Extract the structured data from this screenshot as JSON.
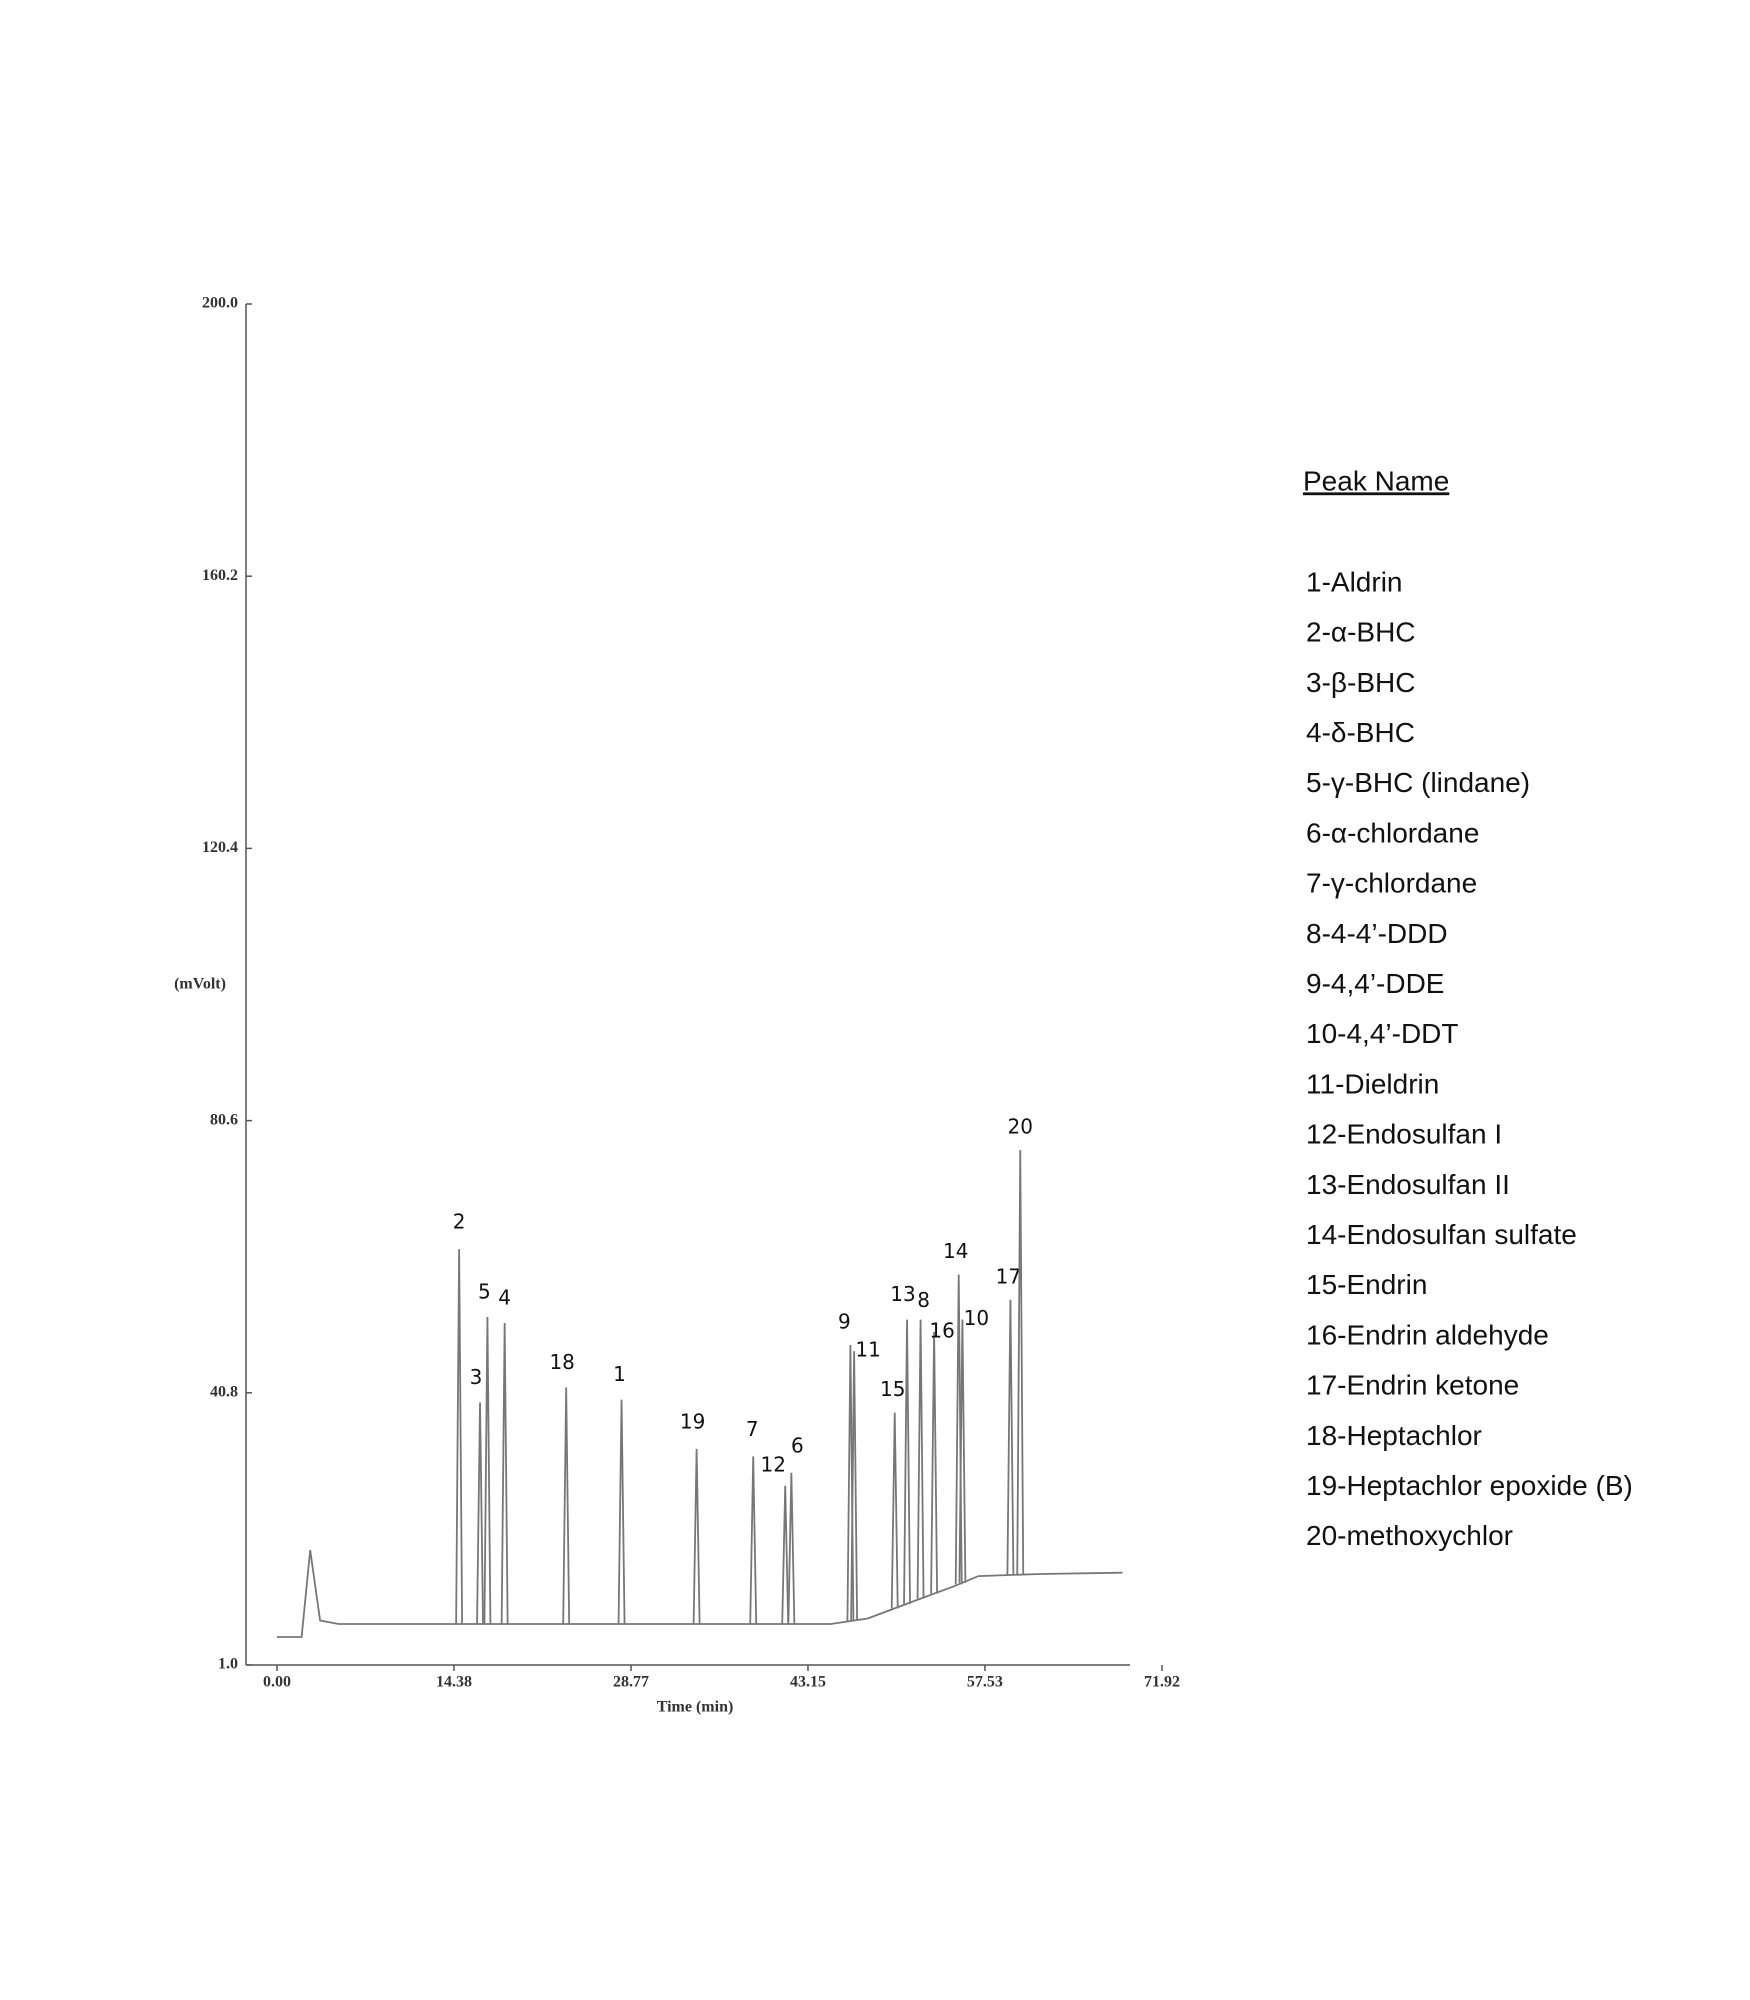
{
  "chart_data": {
    "type": "chromatogram",
    "y_label": "(mVolt)",
    "x_label": "Time (min)",
    "xlim": [
      0,
      71.92
    ],
    "ylim": [
      1.0,
      200.0
    ],
    "xticks": [
      {
        "value": 0,
        "label": "0.00"
      },
      14.38,
      28.77,
      43.15,
      57.53,
      71.92
    ],
    "yticks": [
      {
        "value": 1,
        "label": "1.0"
      },
      40.8,
      80.6,
      120.4,
      160.2,
      {
        "value": 200,
        "label": "200.0"
      }
    ],
    "color": "#777777",
    "baseline": {
      "x": [
        0,
        2.0,
        2.7,
        3.5,
        5.0,
        45.0,
        48.0,
        52.0,
        55.0,
        57.0,
        62.0,
        68.7
      ],
      "values": [
        5.1,
        5.1,
        17.8,
        7.5,
        7.0,
        7.0,
        7.8,
        10.5,
        12.5,
        14.0,
        14.3,
        14.5
      ]
    },
    "peaks": [
      {
        "label": "2",
        "time": 14.8,
        "height": 61.8
      },
      {
        "label": "3",
        "time": 16.5,
        "height": 39.4
      },
      {
        "label": "5",
        "time": 17.1,
        "height": 51.9
      },
      {
        "label": "4",
        "time": 18.5,
        "height": 51.0
      },
      {
        "label": "18",
        "time": 23.5,
        "height": 41.6
      },
      {
        "label": "1",
        "time": 28.0,
        "height": 39.8
      },
      {
        "label": "19",
        "time": 34.1,
        "height": 32.6
      },
      {
        "label": "7",
        "time": 38.7,
        "height": 31.5
      },
      {
        "label": "12",
        "time": 41.3,
        "height": 27.2
      },
      {
        "label": "6",
        "time": 41.8,
        "height": 29.1
      },
      {
        "label": "9",
        "time": 46.6,
        "height": 47.8
      },
      {
        "label": "11",
        "time": 46.9,
        "height": 46.9
      },
      {
        "label": "15",
        "time": 50.2,
        "height": 37.9
      },
      {
        "label": "13",
        "time": 51.2,
        "height": 51.5
      },
      {
        "label": "8",
        "time": 52.3,
        "height": 51.5
      },
      {
        "label": "16",
        "time": 53.4,
        "height": 49.7
      },
      {
        "label": "14",
        "time": 55.4,
        "height": 58.1
      },
      {
        "label": "10",
        "time": 55.7,
        "height": 51.5
      },
      {
        "label": "17",
        "time": 59.6,
        "height": 54.4
      },
      {
        "label": "20",
        "time": 60.4,
        "height": 76.3
      }
    ],
    "legend": {
      "title": "Peak Name",
      "items": [
        "1-Aldrin",
        "2-α-BHC",
        "3-β-BHC",
        "4-δ-BHC",
        "5-γ-BHC (lindane)",
        "6-α-chlordane",
        "7-γ-chlordane",
        "8-4-4’-DDD",
        "9-4,4’-DDE",
        "10-4,4’-DDT",
        "11-Dieldrin",
        "12-Endosulfan I",
        "13-Endosulfan II",
        "14-Endosulfan sulfate",
        "15-Endrin",
        "16-Endrin aldehyde",
        "17-Endrin ketone",
        "18-Heptachlor",
        "19-Heptachlor epoxide (B)",
        "20-methoxychlor"
      ]
    }
  }
}
